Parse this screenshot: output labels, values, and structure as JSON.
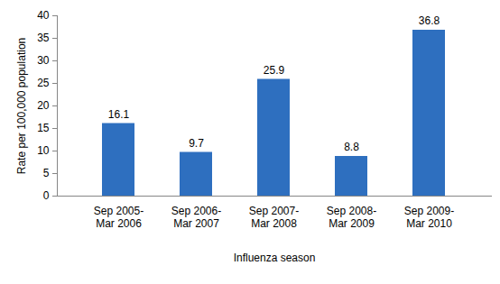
{
  "chart_data": {
    "type": "bar",
    "categories": [
      "Sep 2005-\nMar 2006",
      "Sep 2006-\nMar 2007",
      "Sep 2007-\nMar 2008",
      "Sep 2008-\nMar 2009",
      "Sep 2009-\nMar 2010"
    ],
    "values": [
      16.1,
      9.7,
      25.9,
      8.8,
      36.8
    ],
    "color": "#2e6fbf",
    "xlabel": "Influenza season",
    "ylabel": "Rate per 100,000 population",
    "ylim": [
      0,
      40
    ],
    "yticks": [
      0,
      5,
      10,
      15,
      20,
      25,
      30,
      35,
      40
    ],
    "grid": false,
    "data_labels": true
  }
}
